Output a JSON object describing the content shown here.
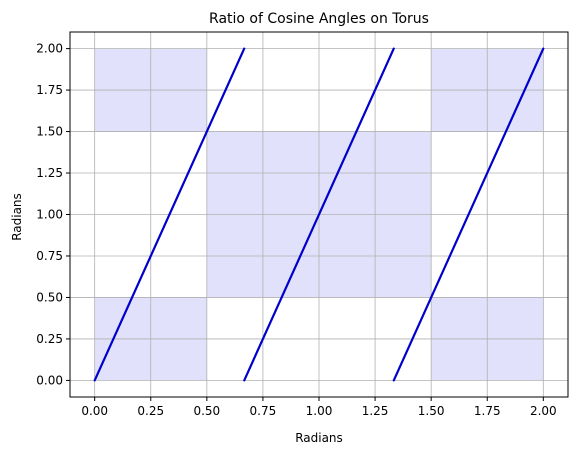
{
  "chart_data": {
    "type": "line",
    "title": "Ratio of Cosine Angles on Torus",
    "xlabel": "Radians",
    "ylabel": "Radians",
    "xlim": [
      -0.11,
      2.11
    ],
    "ylim": [
      -0.1,
      2.1
    ],
    "xticks": [
      0.0,
      0.25,
      0.5,
      0.75,
      1.0,
      1.25,
      1.5,
      1.75,
      2.0
    ],
    "xtick_labels": [
      "0.00",
      "0.25",
      "0.50",
      "0.75",
      "1.00",
      "1.25",
      "1.50",
      "1.75",
      "2.00"
    ],
    "yticks": [
      0.0,
      0.25,
      0.5,
      0.75,
      1.0,
      1.25,
      1.5,
      1.75,
      2.0
    ],
    "ytick_labels": [
      "0.00",
      "0.25",
      "0.50",
      "0.75",
      "1.00",
      "1.25",
      "1.50",
      "1.75",
      "2.00"
    ],
    "grid": true,
    "shaded_regions": [
      {
        "x": [
          0.0,
          0.5
        ],
        "y": [
          0.0,
          0.5
        ]
      },
      {
        "x": [
          0.0,
          0.5
        ],
        "y": [
          1.5,
          2.0
        ]
      },
      {
        "x": [
          0.5,
          1.5
        ],
        "y": [
          0.5,
          1.5
        ]
      },
      {
        "x": [
          1.5,
          2.0
        ],
        "y": [
          0.0,
          0.5
        ]
      },
      {
        "x": [
          1.5,
          2.0
        ],
        "y": [
          1.5,
          2.0
        ]
      }
    ],
    "series": [
      {
        "x": [
          0.0,
          0.6667
        ],
        "y": [
          0.0,
          2.0
        ]
      },
      {
        "x": [
          0.6667,
          1.3333
        ],
        "y": [
          0.0,
          2.0
        ]
      },
      {
        "x": [
          1.3333,
          2.0
        ],
        "y": [
          0.0,
          2.0
        ]
      }
    ],
    "colors": {
      "line": "#0000cc",
      "shade": "#e1e1fb",
      "grid": "#b0b0b0",
      "axis": "#000000"
    }
  }
}
